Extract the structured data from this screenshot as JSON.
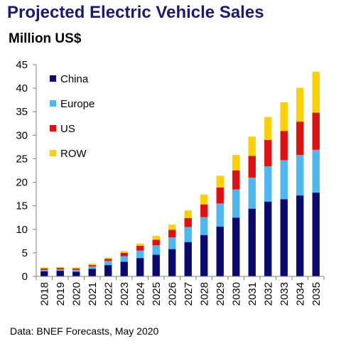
{
  "title": "Projected Electric Vehicle Sales",
  "subtitle": "Million US$",
  "source": "Data: BNEF Forecasts, May 2020",
  "chart_data": {
    "type": "bar",
    "stacked": true,
    "categories": [
      "2018",
      "2019",
      "2020",
      "2021",
      "2022",
      "2023",
      "2024",
      "2025",
      "2026",
      "2027",
      "2028",
      "2029",
      "2030",
      "2031",
      "2032",
      "2033",
      "2034",
      "2035"
    ],
    "series": [
      {
        "name": "China",
        "color": "#0a0a6e",
        "values": [
          1.1,
          1.2,
          1.0,
          1.6,
          2.4,
          3.1,
          3.9,
          4.6,
          5.8,
          7.3,
          8.8,
          10.6,
          12.5,
          14.4,
          15.9,
          16.4,
          17.2,
          17.8
        ]
      },
      {
        "name": "Europe",
        "color": "#4db8f0",
        "values": [
          0.3,
          0.3,
          0.4,
          0.5,
          0.9,
          1.2,
          1.6,
          2.0,
          2.5,
          3.2,
          3.8,
          4.9,
          6.0,
          6.6,
          7.5,
          8.3,
          8.6,
          9.1
        ]
      },
      {
        "name": "US",
        "color": "#e01010",
        "values": [
          0.3,
          0.3,
          0.3,
          0.3,
          0.4,
          0.7,
          1.0,
          1.2,
          1.6,
          1.9,
          2.7,
          3.4,
          4.0,
          4.6,
          5.6,
          6.2,
          7.1,
          7.9
        ]
      },
      {
        "name": "ROW",
        "color": "#ffd000",
        "values": [
          0.2,
          0.2,
          0.2,
          0.3,
          0.3,
          0.4,
          0.5,
          0.8,
          1.1,
          1.6,
          2.1,
          2.5,
          3.3,
          4.1,
          4.9,
          6.1,
          7.2,
          8.7
        ]
      }
    ],
    "ylim": [
      0,
      45
    ],
    "yticks": [
      0,
      5,
      10,
      15,
      20,
      25,
      30,
      35,
      40,
      45
    ],
    "xlabel": "",
    "ylabel": "",
    "grid": false,
    "legend_position": "top-left"
  }
}
